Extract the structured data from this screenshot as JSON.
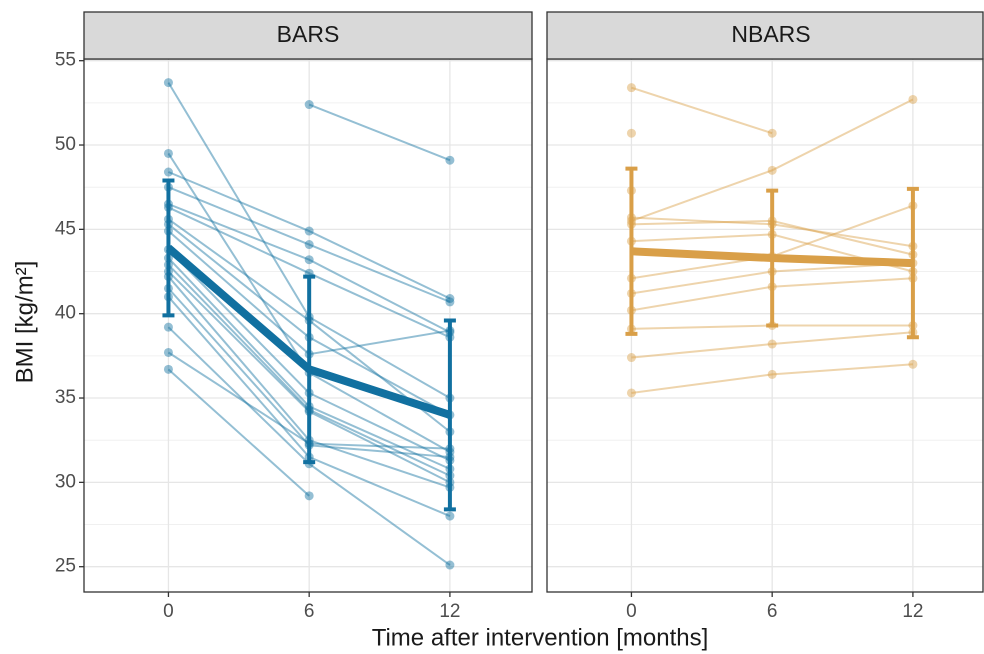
{
  "chart_data": {
    "type": "line",
    "x_label": "Time after intervention [months]",
    "y_label": "BMI [kg/m²]",
    "x": [
      0,
      6,
      12
    ],
    "xlim": [
      -3.6,
      15.5
    ],
    "xticks": [
      0,
      6,
      12
    ],
    "ylim": [
      23.5,
      55.1
    ],
    "yticks": [
      25,
      30,
      35,
      40,
      45,
      50,
      55
    ],
    "grid": true,
    "panels": [
      {
        "title": "BARS",
        "color": "#1170a0",
        "series": [
          {
            "values": [
              53.7,
              39.8,
              35.0
            ]
          },
          {
            "values": [
              null,
              52.4,
              49.1
            ]
          },
          {
            "values": [
              49.5,
              36.5,
              31.8
            ]
          },
          {
            "values": [
              48.4,
              44.9,
              40.9
            ]
          },
          {
            "values": [
              47.5,
              44.1,
              40.7
            ]
          },
          {
            "values": [
              46.5,
              43.2,
              38.9
            ]
          },
          {
            "values": [
              46.3,
              42.4,
              38.6
            ]
          },
          {
            "values": [
              45.6,
              39.6,
              33.0
            ]
          },
          {
            "values": [
              45.3,
              38.6,
              34.0
            ]
          },
          {
            "values": [
              44.9,
              37.6,
              39.0
            ]
          },
          {
            "values": [
              43.8,
              35.3,
              31.3
            ]
          },
          {
            "values": [
              43.3,
              34.5,
              30.8
            ]
          },
          {
            "values": [
              42.9,
              34.3,
              30.4
            ]
          },
          {
            "values": [
              42.5,
              34.2,
              30.0
            ]
          },
          {
            "values": [
              42.2,
              32.5,
              29.7
            ]
          },
          {
            "values": [
              41.5,
              32.2,
              31.5
            ]
          },
          {
            "values": [
              41.0,
              31.5,
              28.0
            ]
          },
          {
            "values": [
              39.2,
              31.1,
              25.1
            ]
          },
          {
            "values": [
              37.7,
              32.3,
              32.0
            ]
          },
          {
            "values": [
              36.7,
              29.2,
              null
            ]
          }
        ],
        "mean": [
          43.9,
          36.7,
          34.0
        ],
        "error": [
          4.0,
          5.5,
          5.6
        ]
      },
      {
        "title": "NBARS",
        "color": "#d99f48",
        "series": [
          {
            "values": [
              53.4,
              50.7,
              null
            ]
          },
          {
            "values": [
              50.7,
              null,
              null
            ]
          },
          {
            "values": [
              47.3,
              null,
              null
            ]
          },
          {
            "values": [
              45.5,
              48.5,
              52.7
            ]
          },
          {
            "values": [
              45.7,
              45.3,
              44.0
            ]
          },
          {
            "values": [
              45.3,
              45.5,
              43.5
            ]
          },
          {
            "values": [
              44.3,
              44.7,
              42.5
            ]
          },
          {
            "values": [
              42.1,
              43.4,
              46.4
            ]
          },
          {
            "values": [
              41.2,
              42.5,
              43.0
            ]
          },
          {
            "values": [
              40.2,
              41.6,
              42.1
            ]
          },
          {
            "values": [
              39.1,
              39.3,
              39.3
            ]
          },
          {
            "values": [
              37.4,
              38.2,
              38.9
            ]
          },
          {
            "values": [
              35.3,
              36.4,
              37.0
            ]
          }
        ],
        "mean": [
          43.7,
          43.3,
          43.0
        ],
        "error": [
          4.9,
          4.0,
          4.4
        ]
      }
    ]
  }
}
